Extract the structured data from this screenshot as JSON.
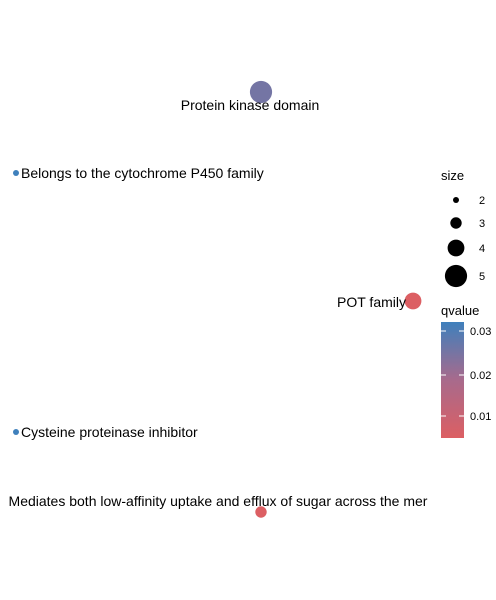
{
  "chart_data": {
    "type": "scatter",
    "points": [
      {
        "label": "Protein kinase domain",
        "size": 5,
        "qvalue": 0.026
      },
      {
        "label": "Belongs to the cytochrome P450 family",
        "size": 2,
        "qvalue": 0.033
      },
      {
        "label": "POT family",
        "size": 4,
        "qvalue": 0.005
      },
      {
        "label": "Cysteine proteinase inhibitor",
        "size": 2,
        "qvalue": 0.033
      },
      {
        "label": "Mediates both low-affinity uptake and efflux of sugar across the mer",
        "size": 3,
        "qvalue": 0.005
      }
    ],
    "legend": {
      "size": {
        "title": "size",
        "values": [
          2,
          3,
          4,
          5
        ]
      },
      "qvalue": {
        "title": "qvalue",
        "ticks": [
          "0.03",
          "0.02",
          "0.01"
        ],
        "low_color": "#DC5F63",
        "high_color": "#3F80BC"
      }
    },
    "axes_visible": false,
    "grid": false
  }
}
